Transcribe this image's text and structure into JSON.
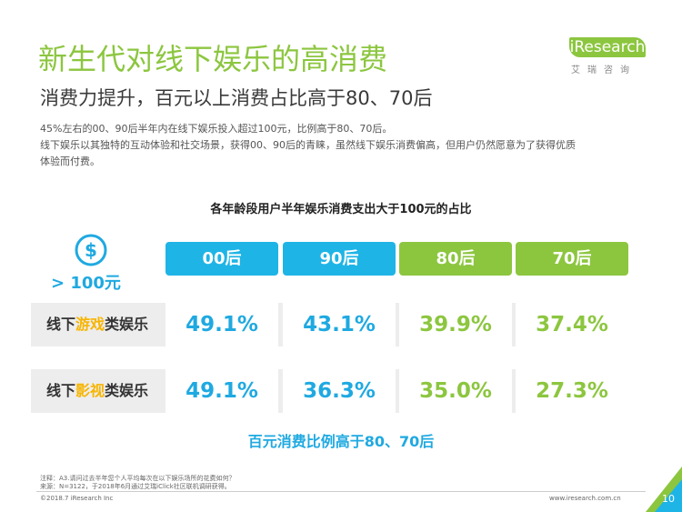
{
  "header": {
    "title": "新生代对线下娱乐的高消费",
    "subtitle": "消费力提升，百元以上消费占比高于80、70后",
    "description": [
      "45%左右的00、90后半年内在线下娱乐投入超过100元，比例高于80、70后。",
      "线下娱乐以其独特的互动体验和社交场景，获得00、90后的青睐，虽然线下娱乐消费偏高，但用户仍然愿意为了获得优质",
      "体验而付费。"
    ]
  },
  "logo": {
    "text": "iResearch",
    "sub": "艾瑞咨询"
  },
  "chart": {
    "title": "各年龄段用户半年娱乐消费支出大于100元的占比",
    "threshold_label": "> 100元",
    "icon": "dollar-circle-icon",
    "conclusion": "百元消费比例高于80、70后"
  },
  "chart_data": {
    "type": "table",
    "title": "各年龄段用户半年娱乐消费支出大于100元的占比",
    "columns": [
      "00后",
      "90后",
      "80后",
      "70后"
    ],
    "rows": [
      {
        "label_prefix": "线下",
        "label_highlight": "游戏",
        "label_suffix": "类娱乐",
        "display": [
          "49.1%",
          "43.1%",
          "39.9%",
          "37.4%"
        ],
        "values": [
          49.1,
          43.1,
          39.9,
          37.4
        ]
      },
      {
        "label_prefix": "线下",
        "label_highlight": "影视",
        "label_suffix": "类娱乐",
        "display": [
          "49.1%",
          "36.3%",
          "35.0%",
          "27.3%"
        ],
        "values": [
          49.1,
          36.3,
          35.0,
          27.3
        ]
      }
    ]
  },
  "colors": {
    "blue": "#1fb4e6",
    "green": "#8cc63f",
    "highlight": "#f7b500"
  },
  "footer": {
    "note1": "注释：A3.请问过去半年您个人平均每次在以下娱乐场所的花费如何？",
    "note2": "来源：N=3122，于2018年6月通过艾瑞iClick社区联机调研获得。",
    "copyright": "©2018.7 iResearch Inc",
    "site": "www.iresearch.com.cn",
    "page": "10"
  }
}
